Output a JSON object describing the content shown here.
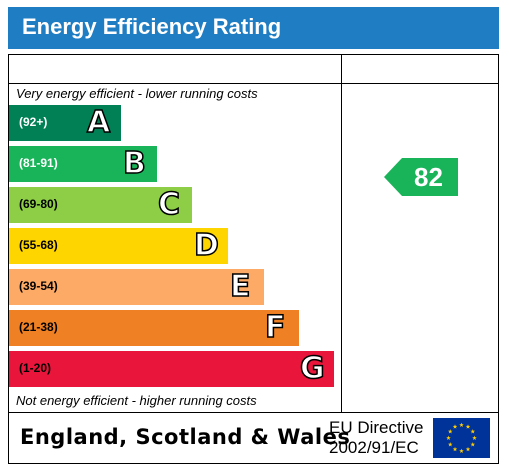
{
  "header": {
    "title": "Energy Efficiency Rating"
  },
  "captions": {
    "top": "Very energy efficient - lower running costs",
    "bottom": "Not energy efficient - higher running costs"
  },
  "chart_data": {
    "type": "bar",
    "categories": [
      "A",
      "B",
      "C",
      "D",
      "E",
      "F",
      "G"
    ],
    "ranges": [
      "(92+)",
      "(81-91)",
      "(69-80)",
      "(55-68)",
      "(39-54)",
      "(21-38)",
      "(1-20)"
    ],
    "colors": [
      "#008054",
      "#19b459",
      "#8dce46",
      "#ffd500",
      "#fcaa65",
      "#ef8023",
      "#e9153b"
    ],
    "range_text_colors": [
      "#ffffff",
      "#ffffff",
      "#000000",
      "#000000",
      "#000000",
      "#000000",
      "#000000"
    ],
    "current_rating": {
      "value": "82",
      "band": "B",
      "color": "#19b459"
    }
  },
  "footer": {
    "region": "England, Scotland & Wales",
    "directive_line1": "EU Directive",
    "directive_line2": "2002/91/EC"
  },
  "flag": {
    "background": "#003399",
    "stars": "#ffcc00"
  }
}
